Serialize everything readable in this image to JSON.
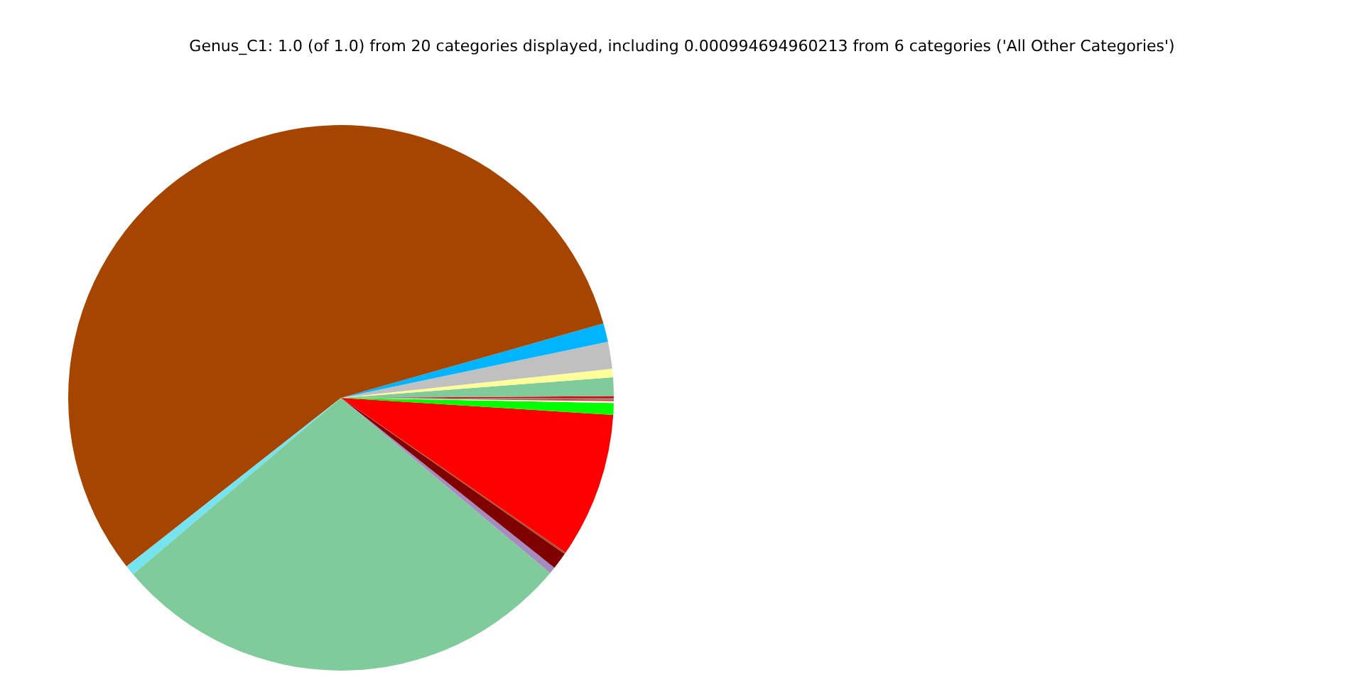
{
  "chart_data": {
    "type": "pie",
    "title": "Genus_C1: 1.0 (of 1.0) from 20 categories displayed, including 0.000994694960213 from 6 categories ('All Other Categories')",
    "categories": [
      null,
      null,
      null,
      null,
      null,
      null,
      null,
      null,
      null,
      null,
      null,
      null,
      null,
      null,
      null,
      null
    ],
    "values": [
      0.1,
      1.1,
      0.5,
      1.6,
      1.1,
      56.2,
      0.6,
      27.7,
      0.4,
      1.0,
      0.1,
      8.6,
      0.7,
      0.1,
      0.1,
      0.1
    ],
    "colors": [
      "#e00000",
      "#80cb9b",
      "#ffff99",
      "#c0c0c0",
      "#00b4ff",
      "#a54500",
      "#76e4f0",
      "#80cb9b",
      "#a68bc0",
      "#800000",
      "#a0522d",
      "#ff0000",
      "#00ff00",
      "#ffffff",
      "#ff3030",
      "#808080"
    ],
    "legend": false
  }
}
